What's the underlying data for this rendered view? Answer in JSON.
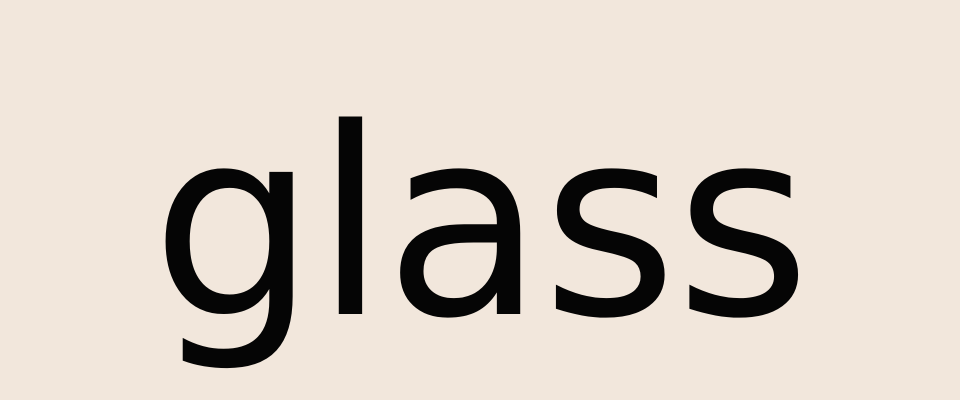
{
  "word": "glass",
  "colors": {
    "background": "#f2e7dc",
    "text": "#050505"
  }
}
